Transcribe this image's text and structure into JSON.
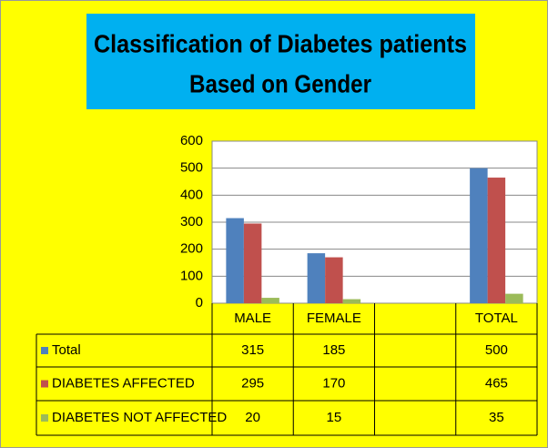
{
  "chart_data": {
    "type": "bar",
    "title": [
      "Classification of Diabetes patients",
      "Based on Gender"
    ],
    "categories": [
      "MALE",
      "FEMALE",
      null,
      "TOTAL"
    ],
    "series": [
      {
        "name": "Total",
        "color": "#4f81bd",
        "values": [
          315,
          185,
          null,
          500
        ]
      },
      {
        "name": "DIABETES AFFECTED",
        "color": "#c0504d",
        "values": [
          295,
          170,
          null,
          465
        ]
      },
      {
        "name": "DIABETES NOT AFFECTED",
        "color": "#9bbb59",
        "values": [
          20,
          15,
          null,
          35
        ]
      }
    ],
    "ylim": [
      0,
      600
    ],
    "yticks": [
      0,
      100,
      200,
      300,
      400,
      500,
      600
    ],
    "grid": true
  }
}
